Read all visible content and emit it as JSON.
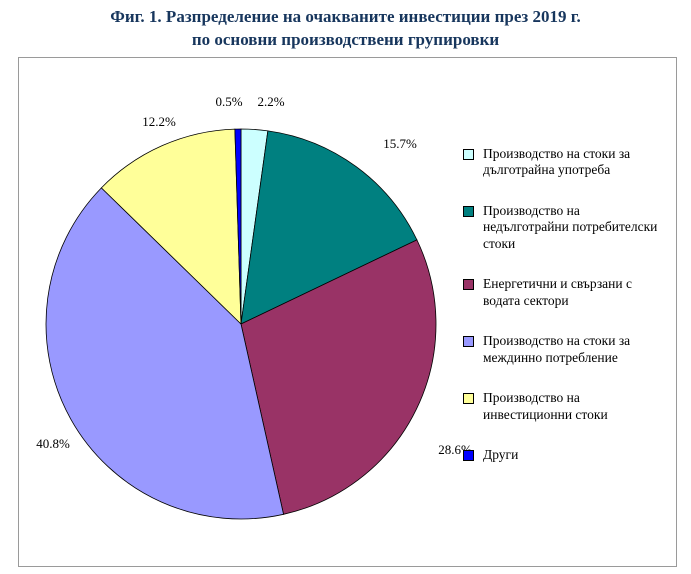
{
  "title": {
    "line1": "Фиг. 1. Разпределение на очакваните инвестиции през 2019 г.",
    "line2": "по основни производствени групировки"
  },
  "chart_data": {
    "type": "pie",
    "title": "Разпределение на очакваните инвестиции през 2019 г. по основни производствени групировки",
    "legend_position": "right",
    "start_angle_deg": 0,
    "direction": "clockwise",
    "slices": [
      {
        "label": "Производство на стоки за дълготрайна употреба",
        "value": 2.2,
        "pct_label": "2.2%",
        "color": "#CCFFFF"
      },
      {
        "label": "Производство на недълготрайни  потребителски  стоки",
        "value": 15.7,
        "pct_label": "15.7%",
        "color": "#008080"
      },
      {
        "label": "Енергетични и свързани с водата  сектори",
        "value": 28.6,
        "pct_label": "28.6%",
        "color": "#993366"
      },
      {
        "label": "Производство на стоки за междинно потребление",
        "value": 40.8,
        "pct_label": "40.8%",
        "color": "#9999FF"
      },
      {
        "label": "Производство на инвестиционни  стоки",
        "value": 12.2,
        "pct_label": "12.2%",
        "color": "#FFFF99"
      },
      {
        "label": "Други",
        "value": 0.5,
        "pct_label": "0.5%",
        "color": "#0000FF"
      }
    ]
  }
}
